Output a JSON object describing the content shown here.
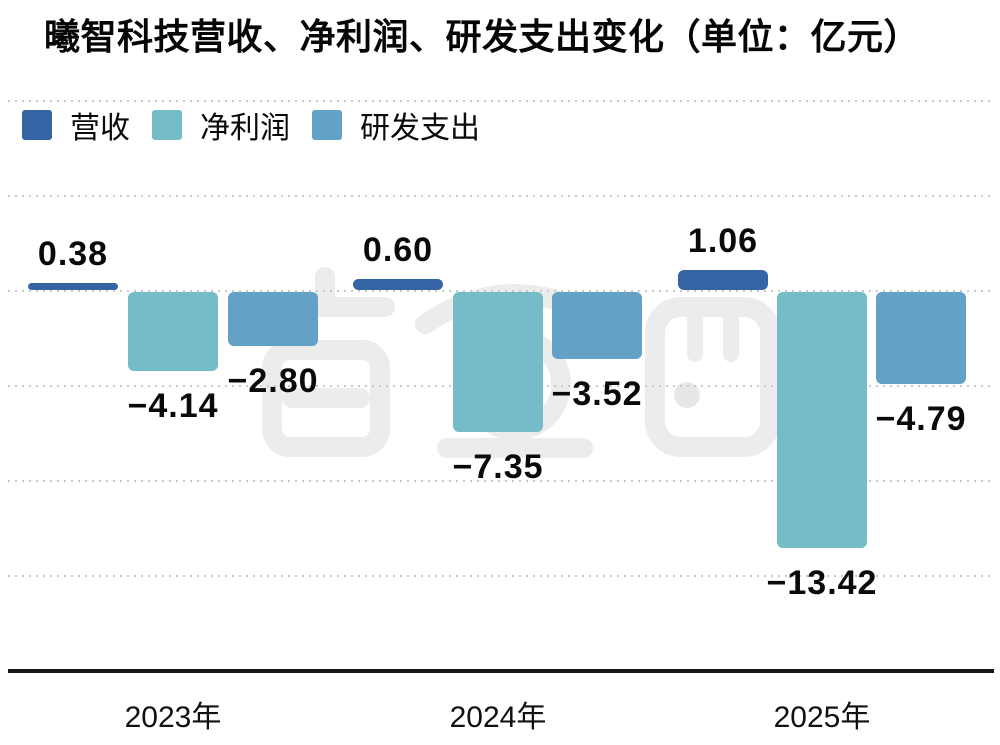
{
  "title": "曦智科技营收、净利润、研发支出变化（单位：亿元）",
  "watermark": "智东西",
  "chart_data": {
    "type": "bar",
    "title": "曦智科技营收、净利润、研发支出变化",
    "unit": "亿元",
    "categories": [
      "2023年",
      "2024年",
      "2025年"
    ],
    "series": [
      {
        "name": "营收",
        "color": "#3464a3",
        "values": [
          0.38,
          0.6,
          1.06
        ],
        "labels": [
          "0.38",
          "0.60",
          "1.06"
        ]
      },
      {
        "name": "净利润",
        "color": "#73bcc8",
        "values": [
          -4.14,
          -7.35,
          -13.42
        ],
        "labels": [
          "−4.14",
          "−7.35",
          "−13.42"
        ]
      },
      {
        "name": "研发支出",
        "color": "#63a1c7",
        "values": [
          -2.8,
          -3.52,
          -4.79
        ],
        "labels": [
          "−2.80",
          "−3.52",
          "−4.79"
        ]
      }
    ],
    "ylim": [
      -20,
      10
    ],
    "gridline_step": 5,
    "grid": true,
    "legend_position": "top-left",
    "bar_label_position": "outside-end"
  }
}
